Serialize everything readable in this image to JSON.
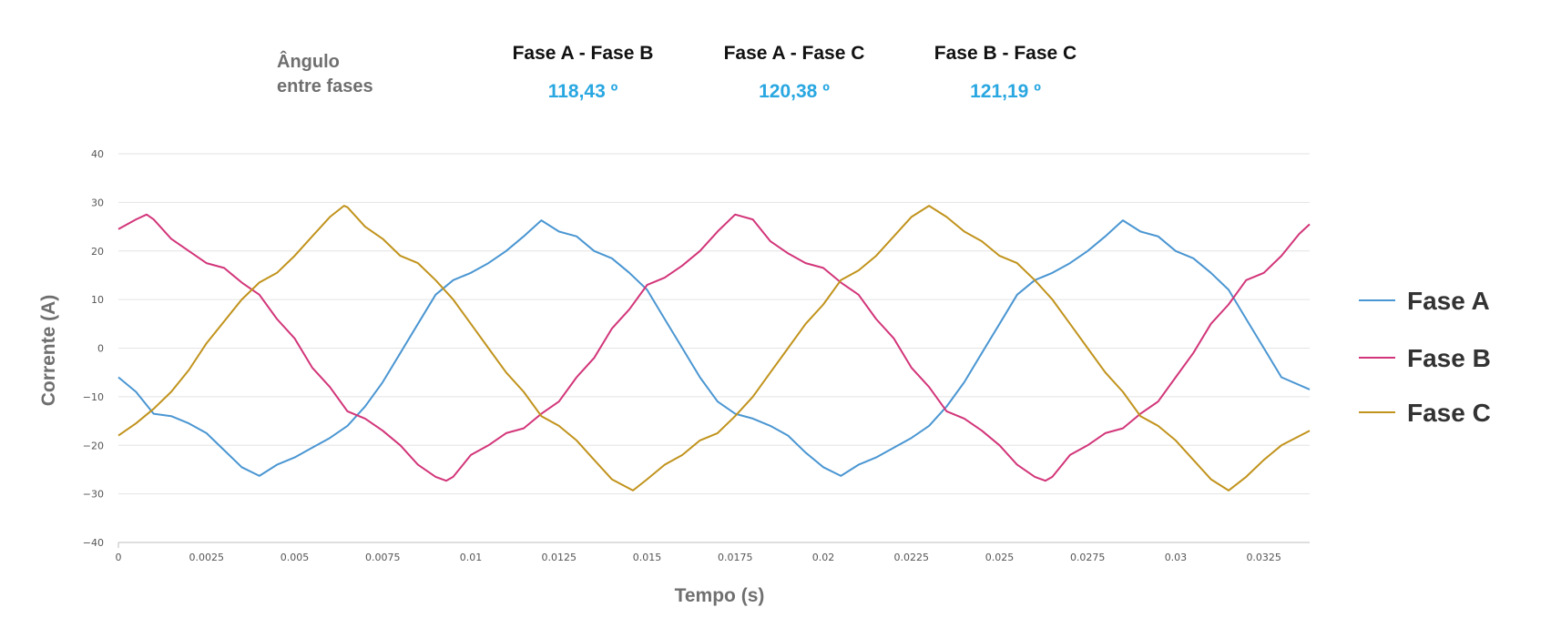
{
  "header": {
    "label_line1": "Ângulo",
    "label_line2": "entre fases",
    "pairs": [
      {
        "name": "Fase A - Fase B",
        "value": "118,43 º"
      },
      {
        "name": "Fase A - Fase C",
        "value": "120,38 º"
      },
      {
        "name": "Fase B - Fase C",
        "value": "121,19 º"
      }
    ]
  },
  "chart_data": {
    "type": "line",
    "title": "",
    "xlabel": "Tempo (s)",
    "ylabel": "Corrente (A)",
    "xlim": [
      0,
      0.0338
    ],
    "ylim": [
      -40,
      40
    ],
    "x_ticks": [
      0,
      0.0025,
      0.005,
      0.0075,
      0.01,
      0.0125,
      0.015,
      0.0175,
      0.02,
      0.0225,
      0.025,
      0.0275,
      0.03,
      0.0325
    ],
    "x_tick_labels": [
      "0",
      "0.0025",
      "0.005",
      "0.0075",
      "0.01",
      "0.0125",
      "0.015",
      "0.0175",
      "0.02",
      "0.0225",
      "0.025",
      "0.0275",
      "0.03",
      "0.0325"
    ],
    "y_ticks": [
      -40,
      -30,
      -20,
      -10,
      0,
      10,
      20,
      30,
      40
    ],
    "y_tick_labels": [
      "−40",
      "−30",
      "−20",
      "−10",
      "0",
      "10",
      "20",
      "30",
      "40"
    ],
    "grid": "horizontal",
    "legend_position": "right",
    "series": [
      {
        "name": "Fase A",
        "color": "#4a96d2",
        "points": [
          [
            0,
            -6
          ],
          [
            0.0005,
            -9
          ],
          [
            0.001,
            -13.5
          ],
          [
            0.0015,
            -14
          ],
          [
            0.002,
            -15.5
          ],
          [
            0.0025,
            -17.5
          ],
          [
            0.003,
            -21
          ],
          [
            0.0035,
            -24.5
          ],
          [
            0.004,
            -26.3
          ],
          [
            0.0045,
            -24
          ],
          [
            0.005,
            -22.5
          ],
          [
            0.0055,
            -20.5
          ],
          [
            0.006,
            -18.5
          ],
          [
            0.0065,
            -16
          ],
          [
            0.007,
            -12
          ],
          [
            0.0075,
            -7
          ],
          [
            0.008,
            -1
          ],
          [
            0.0085,
            5
          ],
          [
            0.009,
            11
          ],
          [
            0.0095,
            14
          ],
          [
            0.01,
            15.5
          ],
          [
            0.0105,
            17.5
          ],
          [
            0.011,
            20
          ],
          [
            0.0115,
            23
          ],
          [
            0.012,
            26.3
          ],
          [
            0.0125,
            24
          ],
          [
            0.013,
            23
          ],
          [
            0.0135,
            20
          ],
          [
            0.014,
            18.5
          ],
          [
            0.0145,
            15.5
          ],
          [
            0.015,
            12
          ],
          [
            0.0155,
            6
          ],
          [
            0.016,
            0
          ],
          [
            0.0165,
            -6
          ],
          [
            0.017,
            -11
          ],
          [
            0.0175,
            -13.5
          ],
          [
            0.018,
            -14.5
          ],
          [
            0.0185,
            -16
          ],
          [
            0.019,
            -18
          ],
          [
            0.0195,
            -21.5
          ],
          [
            0.02,
            -24.5
          ],
          [
            0.0205,
            -26.3
          ],
          [
            0.021,
            -24
          ],
          [
            0.0215,
            -22.5
          ],
          [
            0.022,
            -20.5
          ],
          [
            0.0225,
            -18.5
          ],
          [
            0.023,
            -16
          ],
          [
            0.0235,
            -12
          ],
          [
            0.024,
            -7
          ],
          [
            0.0245,
            -1
          ],
          [
            0.025,
            5
          ],
          [
            0.0255,
            11
          ],
          [
            0.026,
            14
          ],
          [
            0.0265,
            15.5
          ],
          [
            0.027,
            17.5
          ],
          [
            0.0275,
            20
          ],
          [
            0.028,
            23
          ],
          [
            0.0285,
            26.3
          ],
          [
            0.029,
            24
          ],
          [
            0.0295,
            23
          ],
          [
            0.03,
            20
          ],
          [
            0.0305,
            18.5
          ],
          [
            0.031,
            15.5
          ],
          [
            0.0315,
            12
          ],
          [
            0.032,
            6
          ],
          [
            0.0325,
            0
          ],
          [
            0.033,
            -6
          ],
          [
            0.0338,
            -8.5
          ]
        ]
      },
      {
        "name": "Fase B",
        "color": "#d23579",
        "points": [
          [
            0,
            24.5
          ],
          [
            0.0005,
            26.5
          ],
          [
            0.0008,
            27.5
          ],
          [
            0.001,
            26.5
          ],
          [
            0.0015,
            22.5
          ],
          [
            0.002,
            20
          ],
          [
            0.0025,
            17.5
          ],
          [
            0.003,
            16.5
          ],
          [
            0.0035,
            13.5
          ],
          [
            0.004,
            11
          ],
          [
            0.0045,
            6
          ],
          [
            0.005,
            2
          ],
          [
            0.0055,
            -4
          ],
          [
            0.006,
            -8
          ],
          [
            0.0065,
            -13
          ],
          [
            0.007,
            -14.5
          ],
          [
            0.0075,
            -17
          ],
          [
            0.008,
            -20
          ],
          [
            0.0085,
            -24
          ],
          [
            0.009,
            -26.5
          ],
          [
            0.0093,
            -27.3
          ],
          [
            0.0095,
            -26.5
          ],
          [
            0.01,
            -22
          ],
          [
            0.0105,
            -20
          ],
          [
            0.011,
            -17.5
          ],
          [
            0.0115,
            -16.5
          ],
          [
            0.012,
            -13.5
          ],
          [
            0.0125,
            -11
          ],
          [
            0.013,
            -6
          ],
          [
            0.0135,
            -2
          ],
          [
            0.014,
            4
          ],
          [
            0.0145,
            8
          ],
          [
            0.015,
            13
          ],
          [
            0.0155,
            14.5
          ],
          [
            0.016,
            17
          ],
          [
            0.0165,
            20
          ],
          [
            0.017,
            24
          ],
          [
            0.0175,
            27.5
          ],
          [
            0.018,
            26.5
          ],
          [
            0.0185,
            22
          ],
          [
            0.019,
            19.5
          ],
          [
            0.0195,
            17.5
          ],
          [
            0.02,
            16.5
          ],
          [
            0.0205,
            13.5
          ],
          [
            0.021,
            11
          ],
          [
            0.0215,
            6
          ],
          [
            0.022,
            2
          ],
          [
            0.0225,
            -4
          ],
          [
            0.023,
            -8
          ],
          [
            0.0235,
            -13
          ],
          [
            0.024,
            -14.5
          ],
          [
            0.0245,
            -17
          ],
          [
            0.025,
            -20
          ],
          [
            0.0255,
            -24
          ],
          [
            0.026,
            -26.5
          ],
          [
            0.0263,
            -27.3
          ],
          [
            0.0265,
            -26.5
          ],
          [
            0.027,
            -22
          ],
          [
            0.0275,
            -20
          ],
          [
            0.028,
            -17.5
          ],
          [
            0.0285,
            -16.5
          ],
          [
            0.029,
            -13.5
          ],
          [
            0.0295,
            -11
          ],
          [
            0.03,
            -6
          ],
          [
            0.0305,
            -1
          ],
          [
            0.031,
            5
          ],
          [
            0.0315,
            9
          ],
          [
            0.032,
            14
          ],
          [
            0.0325,
            15.5
          ],
          [
            0.033,
            19
          ],
          [
            0.0335,
            23.5
          ],
          [
            0.0338,
            25.5
          ]
        ]
      },
      {
        "name": "Fase C",
        "color": "#c1931c",
        "points": [
          [
            0,
            -18
          ],
          [
            0.0005,
            -15.5
          ],
          [
            0.001,
            -12.5
          ],
          [
            0.0015,
            -9
          ],
          [
            0.002,
            -4.5
          ],
          [
            0.0025,
            1
          ],
          [
            0.003,
            5.5
          ],
          [
            0.0035,
            10
          ],
          [
            0.004,
            13.5
          ],
          [
            0.0045,
            15.5
          ],
          [
            0.005,
            19
          ],
          [
            0.0055,
            23
          ],
          [
            0.006,
            27
          ],
          [
            0.0064,
            29.3
          ],
          [
            0.0065,
            29
          ],
          [
            0.007,
            25
          ],
          [
            0.0075,
            22.5
          ],
          [
            0.008,
            19
          ],
          [
            0.0085,
            17.5
          ],
          [
            0.009,
            14
          ],
          [
            0.0095,
            10
          ],
          [
            0.01,
            5
          ],
          [
            0.0105,
            0
          ],
          [
            0.011,
            -5
          ],
          [
            0.0115,
            -9
          ],
          [
            0.012,
            -14
          ],
          [
            0.0125,
            -16
          ],
          [
            0.013,
            -19
          ],
          [
            0.0135,
            -23
          ],
          [
            0.014,
            -27
          ],
          [
            0.0146,
            -29.3
          ],
          [
            0.015,
            -27
          ],
          [
            0.0155,
            -24
          ],
          [
            0.016,
            -22
          ],
          [
            0.0165,
            -19
          ],
          [
            0.017,
            -17.5
          ],
          [
            0.0175,
            -14
          ],
          [
            0.018,
            -10
          ],
          [
            0.0185,
            -5
          ],
          [
            0.019,
            0
          ],
          [
            0.0195,
            5
          ],
          [
            0.02,
            9
          ],
          [
            0.0205,
            14
          ],
          [
            0.021,
            16
          ],
          [
            0.0215,
            19
          ],
          [
            0.022,
            23
          ],
          [
            0.0225,
            27
          ],
          [
            0.023,
            29.3
          ],
          [
            0.0235,
            27
          ],
          [
            0.024,
            24
          ],
          [
            0.0245,
            22
          ],
          [
            0.025,
            19
          ],
          [
            0.0255,
            17.5
          ],
          [
            0.026,
            14
          ],
          [
            0.0265,
            10
          ],
          [
            0.027,
            5
          ],
          [
            0.0275,
            0
          ],
          [
            0.028,
            -5
          ],
          [
            0.0285,
            -9
          ],
          [
            0.029,
            -14
          ],
          [
            0.0295,
            -16
          ],
          [
            0.03,
            -19
          ],
          [
            0.0305,
            -23
          ],
          [
            0.031,
            -27
          ],
          [
            0.0315,
            -29.3
          ],
          [
            0.032,
            -26.5
          ],
          [
            0.0325,
            -23
          ],
          [
            0.033,
            -20
          ],
          [
            0.0338,
            -17
          ]
        ]
      }
    ]
  }
}
